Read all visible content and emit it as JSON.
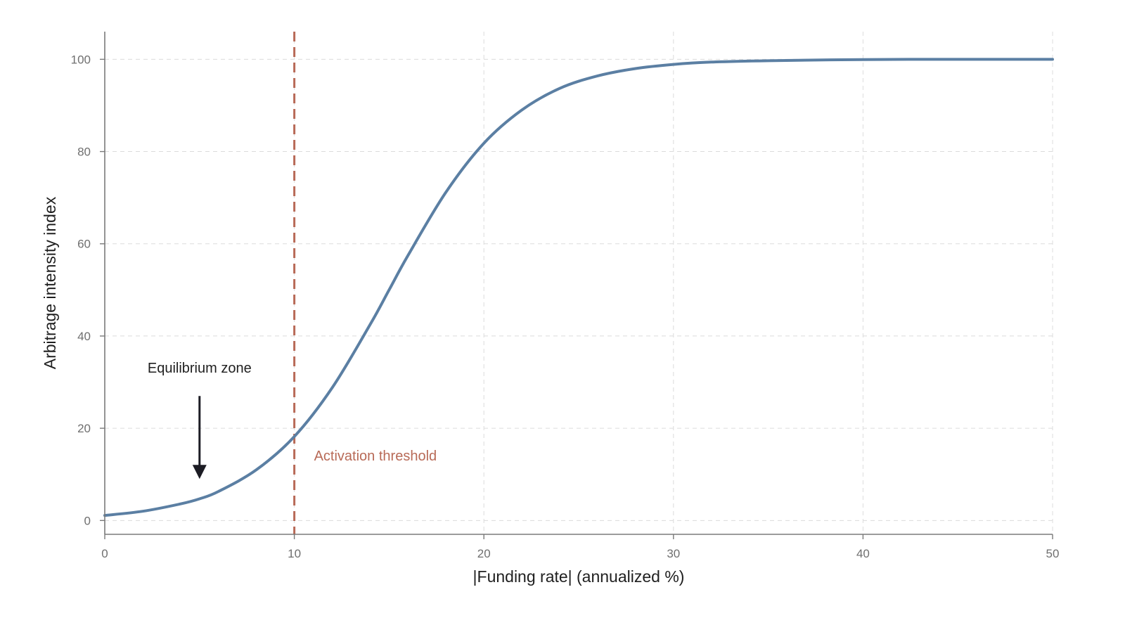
{
  "chart_data": {
    "type": "line",
    "title": "",
    "xlabel": "|Funding rate| (annualized %)",
    "ylabel": "Arbitrage intensity index",
    "xlim": [
      0,
      50
    ],
    "ylim": [
      -3,
      106
    ],
    "xticks": [
      0,
      10,
      20,
      30,
      40,
      50
    ],
    "yticks": [
      0,
      20,
      40,
      60,
      80,
      100
    ],
    "grid": true,
    "legend": "none",
    "series": [
      {
        "color": "#5b7fa3",
        "x": [
          0,
          2,
          4,
          5,
          6,
          8,
          10,
          12,
          14,
          15,
          16,
          18,
          20,
          22,
          24,
          26,
          28,
          30,
          32,
          35,
          40,
          45,
          50
        ],
        "y": [
          1.1,
          2.0,
          3.6,
          4.7,
          6.3,
          11.0,
          18.2,
          28.8,
          42.5,
          50.0,
          57.5,
          71.2,
          81.8,
          89.0,
          93.7,
          96.4,
          98.0,
          98.9,
          99.4,
          99.7,
          99.95,
          100,
          100
        ]
      }
    ],
    "threshold": {
      "x": 10,
      "label": "Activation threshold",
      "color": "#b86a57"
    },
    "annotation": {
      "text": "Equilibrium zone",
      "arrow_x": 5,
      "arrow_y_start": 27,
      "arrow_y_end": 9,
      "arrow_color": "#1c1c24"
    },
    "colors": {
      "axis": "#7a7a7a",
      "grid": "#dcdcdc",
      "tick_label": "#6f6f6f"
    }
  }
}
